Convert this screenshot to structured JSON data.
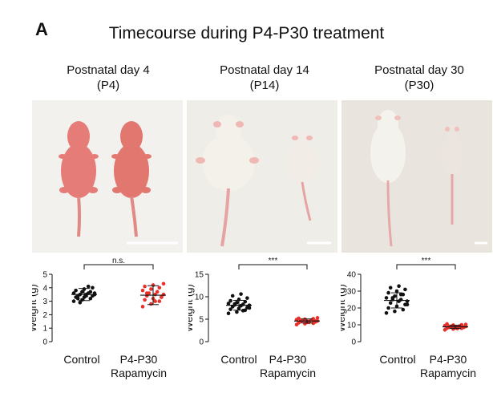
{
  "figure": {
    "panel_letter": "A",
    "title": "Timecourse during P4-P30 treatment"
  },
  "columns": [
    {
      "title_line1": "Postnatal day 4",
      "title_line2": "(P4)"
    },
    {
      "title_line1": "Postnatal day 14",
      "title_line2": "(P14)"
    },
    {
      "title_line1": "Postnatal day 30",
      "title_line2": "(P30)"
    }
  ],
  "groups": {
    "control": "Control",
    "treated_line1": "P4-P30",
    "treated_line2": "Rapamycin"
  },
  "colors": {
    "control": "#111111",
    "treated": "#e8312a",
    "photo_bg_p4": "#f3f1ee",
    "photo_bg_p14": "#efede7",
    "photo_bg_p30": "#e9e5de",
    "pup_skin": "#e57c77",
    "fur": "#f4f1ea",
    "tail": "#e7a2a4"
  },
  "chart_data": [
    {
      "type": "scatter",
      "title": "",
      "ylabel": "Weight (g)",
      "ylim": [
        0,
        5
      ],
      "yticks": [
        0,
        1,
        2,
        3,
        4,
        5
      ],
      "significance": "n.s.",
      "categories": [
        "Control",
        "P4-P30 Rapamycin"
      ],
      "series": [
        {
          "values": [
            3.0,
            3.1,
            3.2,
            3.3,
            3.3,
            3.4,
            3.4,
            3.5,
            3.5,
            3.5,
            3.6,
            3.6,
            3.7,
            3.7,
            3.8,
            3.9,
            4.0,
            3.2,
            3.4,
            3.6,
            2.9,
            4.1
          ],
          "mean": 3.5,
          "sd": 0.45
        },
        {
          "values": [
            2.6,
            2.8,
            3.0,
            3.1,
            3.2,
            3.3,
            3.4,
            3.5,
            3.5,
            3.6,
            3.7,
            3.8,
            3.9,
            4.0,
            4.1,
            4.2,
            3.3,
            3.6,
            3.0,
            4.3
          ],
          "mean": 3.45,
          "sd": 0.7
        }
      ]
    },
    {
      "type": "scatter",
      "title": "",
      "ylabel": "Weight (g)",
      "ylim": [
        0,
        15
      ],
      "yticks": [
        0,
        5,
        10,
        15
      ],
      "significance": "***",
      "categories": [
        "Control",
        "P4-P30 Rapamycin"
      ],
      "series": [
        {
          "values": [
            6.3,
            6.6,
            7.0,
            7.2,
            7.4,
            7.6,
            7.8,
            8.0,
            8.1,
            8.2,
            8.3,
            8.5,
            8.7,
            8.9,
            9.1,
            9.4,
            9.7,
            10.2,
            10.6,
            7.5,
            8.4,
            6.9
          ],
          "mean": 8.1,
          "sd": 1.1
        },
        {
          "values": [
            3.8,
            4.0,
            4.1,
            4.2,
            4.3,
            4.4,
            4.5,
            4.5,
            4.6,
            4.7,
            4.8,
            4.9,
            5.0,
            5.1,
            5.2,
            4.4,
            4.6,
            4.8,
            4.3,
            5.3
          ],
          "mean": 4.6,
          "sd": 0.45
        }
      ]
    },
    {
      "type": "scatter",
      "title": "",
      "ylabel": "Weight (g)",
      "ylim": [
        0,
        40
      ],
      "yticks": [
        0,
        10,
        20,
        30,
        40
      ],
      "significance": "***",
      "categories": [
        "Control",
        "P4-P30 Rapamycin"
      ],
      "series": [
        {
          "values": [
            17,
            18,
            19,
            20,
            21,
            22,
            23,
            24,
            24,
            25,
            25,
            26,
            27,
            28,
            29,
            30,
            31,
            32,
            33,
            22,
            26,
            28
          ],
          "mean": 24.5,
          "sd": 4.5
        },
        {
          "values": [
            7,
            7.5,
            8,
            8,
            8.2,
            8.5,
            8.5,
            8.8,
            9,
            9,
            9.2,
            9.5,
            9.8,
            10,
            10.5,
            8.3,
            8.7,
            9.1,
            7.8,
            10.2
          ],
          "mean": 8.8,
          "sd": 1.0
        }
      ]
    }
  ]
}
